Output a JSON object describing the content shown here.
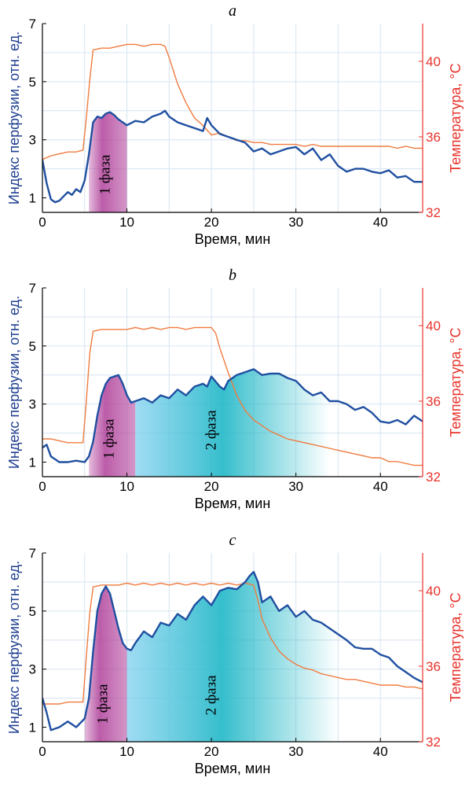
{
  "colors": {
    "perfusion": "#1f4fa0",
    "temperature": "#f07b3f",
    "right_axis": "#e8322a",
    "left_axis_label": "#1f3f8f",
    "phase1": "#b0409a",
    "phase2": "#1fb7c7",
    "grid": "#d6e4f0",
    "axis": "#000000"
  },
  "chart_data": [
    {
      "type": "line",
      "panel_label": "a",
      "xlabel": "Время, мин",
      "ylabel": "Индекс перфузии, отн. ед.",
      "ylabel_right": "Температура, °C",
      "xlim": [
        0,
        45
      ],
      "ylim": [
        0.5,
        7
      ],
      "ylim_right": [
        32,
        42
      ],
      "x_ticks": [
        0,
        10,
        20,
        30,
        40
      ],
      "y_ticks": [
        1,
        3,
        5,
        7
      ],
      "y_ticks_right": [
        32,
        36,
        40
      ],
      "grid": true,
      "phases": [
        {
          "label": "1 фаза",
          "x_start": 5.5,
          "x_end": 10,
          "color": "phase1"
        }
      ],
      "series": [
        {
          "axis": "left",
          "color": "perfusion",
          "x": [
            0,
            0.5,
            1,
            1.5,
            2,
            2.5,
            3,
            3.5,
            4,
            4.5,
            5,
            5.5,
            6,
            6.5,
            7,
            7.5,
            8,
            8.5,
            9,
            10,
            11,
            12,
            13,
            14,
            14.5,
            15,
            16,
            17,
            18,
            19,
            19.5,
            20,
            21,
            22,
            23,
            24,
            25,
            26,
            27,
            28,
            29,
            30,
            31,
            32,
            33,
            34,
            35,
            36,
            37,
            38,
            39,
            40,
            41,
            42,
            43,
            44,
            45
          ],
          "y": [
            2.3,
            1.5,
            0.95,
            0.85,
            0.9,
            1.05,
            1.2,
            1.1,
            1.3,
            1.2,
            1.6,
            2.5,
            3.6,
            3.8,
            3.75,
            3.9,
            3.95,
            3.85,
            3.7,
            3.5,
            3.65,
            3.6,
            3.8,
            3.9,
            4.0,
            3.8,
            3.6,
            3.5,
            3.4,
            3.3,
            3.75,
            3.5,
            3.2,
            3.1,
            3.0,
            2.9,
            2.6,
            2.7,
            2.5,
            2.6,
            2.7,
            2.75,
            2.5,
            2.7,
            2.3,
            2.5,
            2.1,
            1.9,
            2.0,
            2.0,
            1.9,
            1.85,
            1.95,
            1.7,
            1.75,
            1.55,
            1.55
          ]
        },
        {
          "axis": "right",
          "color": "temperature",
          "x": [
            0,
            1,
            2,
            3,
            4,
            4.8,
            5.2,
            5.6,
            6,
            7,
            8,
            9,
            10,
            11,
            12,
            13,
            14,
            14.5,
            15,
            15.5,
            16,
            17,
            18,
            19,
            20,
            21,
            22,
            23,
            24,
            25,
            26,
            27,
            28,
            29,
            30,
            31,
            32,
            33,
            34,
            35,
            36,
            37,
            38,
            39,
            40,
            41,
            42,
            43,
            44,
            45
          ],
          "y": [
            34.8,
            35.0,
            35.1,
            35.2,
            35.2,
            35.3,
            37.0,
            39.0,
            40.6,
            40.7,
            40.7,
            40.8,
            40.9,
            40.9,
            40.8,
            40.9,
            40.9,
            40.8,
            40.2,
            39.5,
            38.8,
            37.8,
            37.0,
            36.6,
            36.1,
            36.2,
            36.0,
            35.8,
            35.8,
            35.7,
            35.7,
            35.6,
            35.6,
            35.6,
            35.6,
            35.5,
            35.6,
            35.5,
            35.5,
            35.5,
            35.5,
            35.5,
            35.5,
            35.5,
            35.5,
            35.5,
            35.4,
            35.5,
            35.4,
            35.4
          ]
        }
      ]
    },
    {
      "type": "line",
      "panel_label": "b",
      "xlabel": "Время, мин",
      "ylabel": "Индекс перфузии, отн. ед.",
      "ylabel_right": "Температура, °C",
      "xlim": [
        0,
        45
      ],
      "ylim": [
        0.5,
        7
      ],
      "ylim_right": [
        32,
        42
      ],
      "x_ticks": [
        0,
        10,
        20,
        30,
        40
      ],
      "y_ticks": [
        1,
        3,
        5,
        7
      ],
      "y_ticks_right": [
        32,
        36,
        40
      ],
      "grid": true,
      "phases": [
        {
          "label": "1 фаза",
          "x_start": 5.5,
          "x_end": 11,
          "color": "phase1"
        },
        {
          "label": "2 фаза",
          "x_start": 11,
          "x_end": 34,
          "color": "phase2"
        }
      ],
      "series": [
        {
          "axis": "left",
          "color": "perfusion",
          "x": [
            0,
            0.5,
            1,
            2,
            3,
            4,
            5,
            5.5,
            6,
            6.5,
            7,
            7.5,
            8,
            8.5,
            9,
            9.5,
            10,
            10.5,
            11,
            12,
            13,
            14,
            15,
            16,
            17,
            18,
            19,
            19.5,
            20,
            21,
            21.5,
            22,
            23,
            24,
            25,
            26,
            27,
            28,
            29,
            30,
            31,
            32,
            33,
            34,
            35,
            36,
            37,
            38,
            39,
            40,
            41,
            42,
            43,
            44,
            45
          ],
          "y": [
            1.5,
            1.6,
            1.2,
            1.0,
            1.0,
            1.05,
            1.0,
            1.2,
            1.7,
            2.6,
            3.3,
            3.7,
            3.9,
            3.95,
            4.0,
            3.7,
            3.3,
            3.05,
            3.1,
            3.2,
            3.05,
            3.3,
            3.2,
            3.5,
            3.3,
            3.6,
            3.7,
            3.6,
            3.95,
            3.6,
            3.5,
            3.8,
            4.0,
            4.1,
            4.2,
            4.0,
            4.05,
            4.05,
            3.9,
            3.8,
            3.5,
            3.3,
            3.4,
            3.1,
            3.1,
            3.0,
            2.8,
            2.9,
            2.7,
            2.4,
            2.35,
            2.45,
            2.3,
            2.6,
            2.4
          ]
        },
        {
          "axis": "right",
          "color": "temperature",
          "x": [
            0,
            1,
            2,
            3,
            4,
            4.8,
            5.2,
            5.6,
            6,
            7,
            8,
            9,
            10,
            11,
            12,
            13,
            14,
            15,
            16,
            17,
            18,
            19,
            20,
            20.5,
            21,
            22,
            23,
            24,
            25,
            26,
            27,
            28,
            29,
            30,
            31,
            32,
            33,
            34,
            35,
            36,
            37,
            38,
            39,
            40,
            41,
            42,
            43,
            44,
            45
          ],
          "y": [
            34.0,
            34.0,
            33.9,
            33.8,
            33.8,
            33.8,
            36.0,
            38.5,
            39.7,
            39.8,
            39.8,
            39.8,
            39.8,
            39.9,
            39.8,
            39.9,
            39.8,
            39.9,
            39.9,
            39.8,
            39.9,
            39.9,
            39.9,
            39.6,
            38.8,
            37.5,
            36.3,
            35.5,
            35.0,
            34.7,
            34.4,
            34.2,
            34.0,
            33.9,
            33.8,
            33.7,
            33.6,
            33.5,
            33.4,
            33.3,
            33.2,
            33.1,
            33.0,
            33.0,
            32.8,
            32.8,
            32.7,
            32.6,
            32.6
          ]
        }
      ]
    },
    {
      "type": "line",
      "panel_label": "c",
      "xlabel": "Время, мин",
      "ylabel": "Индекс перфузии, отн. ед.",
      "ylabel_right": "Температура, °C",
      "xlim": [
        0,
        45
      ],
      "ylim": [
        0.5,
        7
      ],
      "ylim_right": [
        32,
        42
      ],
      "x_ticks": [
        0,
        10,
        20,
        30,
        40
      ],
      "y_ticks": [
        1,
        3,
        5,
        7
      ],
      "y_ticks_right": [
        32,
        36,
        40
      ],
      "grid": true,
      "phases": [
        {
          "label": "1 фаза",
          "x_start": 5,
          "x_end": 10,
          "color": "phase1"
        },
        {
          "label": "2 фаза",
          "x_start": 10,
          "x_end": 35,
          "color": "phase2"
        }
      ],
      "series": [
        {
          "axis": "left",
          "color": "perfusion",
          "x": [
            0,
            0.5,
            1,
            2,
            3,
            4,
            5,
            5.5,
            6,
            6.5,
            7,
            7.5,
            8,
            8.5,
            9,
            9.5,
            10,
            10.5,
            11,
            12,
            13,
            14,
            15,
            16,
            17,
            18,
            19,
            20,
            21,
            22,
            23,
            24,
            24.5,
            25,
            25.5,
            26,
            27,
            28,
            29,
            30,
            31,
            32,
            33,
            34,
            35,
            36,
            37,
            38,
            39,
            40,
            41,
            42,
            43,
            44,
            45
          ],
          "y": [
            2.0,
            1.5,
            0.9,
            1.0,
            1.2,
            1.0,
            1.3,
            2.0,
            3.6,
            5.0,
            5.6,
            5.85,
            5.6,
            5.0,
            4.4,
            3.9,
            3.7,
            3.65,
            3.9,
            4.3,
            4.1,
            4.6,
            4.5,
            4.9,
            4.7,
            5.2,
            5.5,
            5.2,
            5.7,
            5.8,
            5.75,
            6.0,
            6.2,
            6.35,
            6.0,
            5.3,
            5.5,
            5.0,
            5.2,
            4.8,
            5.0,
            4.7,
            4.6,
            4.4,
            4.2,
            4.0,
            3.75,
            3.7,
            3.7,
            3.5,
            3.4,
            3.1,
            2.9,
            2.7,
            2.55
          ]
        },
        {
          "axis": "right",
          "color": "temperature",
          "x": [
            0,
            1,
            2,
            3,
            4,
            4.8,
            5.2,
            5.6,
            6,
            7,
            8,
            9,
            10,
            11,
            12,
            13,
            14,
            15,
            16,
            17,
            18,
            19,
            20,
            21,
            22,
            23,
            24,
            25,
            25.5,
            26,
            27,
            28,
            29,
            30,
            31,
            32,
            33,
            34,
            35,
            36,
            37,
            38,
            39,
            40,
            41,
            42,
            43,
            44,
            45
          ],
          "y": [
            34.0,
            34.0,
            34.0,
            34.1,
            34.1,
            34.1,
            36.5,
            38.8,
            40.2,
            40.3,
            40.3,
            40.3,
            40.4,
            40.3,
            40.4,
            40.3,
            40.4,
            40.3,
            40.4,
            40.3,
            40.4,
            40.3,
            40.4,
            40.3,
            40.4,
            40.3,
            40.4,
            40.3,
            39.5,
            38.5,
            37.5,
            36.8,
            36.4,
            36.1,
            35.9,
            35.8,
            35.6,
            35.5,
            35.4,
            35.3,
            35.3,
            35.2,
            35.1,
            35.0,
            35.0,
            35.0,
            34.9,
            34.9,
            34.8
          ]
        }
      ]
    }
  ]
}
